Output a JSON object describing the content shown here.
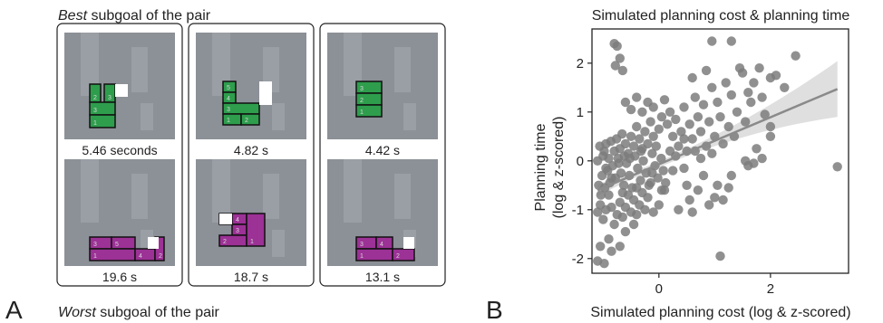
{
  "panel_a": {
    "letter": "A",
    "top_caption_emph": "Best",
    "top_caption_rest": " subgoal of the pair",
    "bottom_caption_emph": "Worst",
    "bottom_caption_rest": " subgoal of the pair",
    "pairs": [
      {
        "best": {
          "time_label": "5.46 seconds",
          "block_numbers": [
            "2",
            "3",
            "3",
            "1"
          ]
        },
        "worst": {
          "time_label": "19.6 s",
          "block_numbers": [
            "3",
            "5",
            "1",
            "4",
            "2"
          ]
        }
      },
      {
        "best": {
          "time_label": "4.82 s",
          "block_numbers": [
            "5",
            "4",
            "3",
            "1",
            "2"
          ]
        },
        "worst": {
          "time_label": "18.7 s",
          "block_numbers": [
            "5",
            "4",
            "3",
            "2",
            "1"
          ]
        }
      },
      {
        "best": {
          "time_label": "4.42 s",
          "block_numbers": [
            "3",
            "2",
            "1"
          ]
        },
        "worst": {
          "time_label": "13.1 s",
          "block_numbers": [
            "3",
            "4",
            "1",
            "2"
          ]
        }
      }
    ],
    "colors": {
      "best_fill": "#2e9e4d",
      "worst_fill": "#9c3196",
      "block_border": "#111111",
      "gap": "#ffffff"
    }
  },
  "panel_b": {
    "letter": "B",
    "title": "Simulated planning cost & planning time",
    "colors": {
      "points": "#7d7d7d",
      "fit_line": "#8a8a8a",
      "ci_band": "#dcdcdc"
    }
  },
  "chart_data": {
    "type": "scatter",
    "title": "Simulated planning cost & planning time",
    "xlabel": "Simulated planning cost (log & z-scored)",
    "ylabel_lines": [
      "Planning time",
      "(log & z-scored)"
    ],
    "xlim": [
      -1.2,
      3.4
    ],
    "ylim": [
      -2.3,
      2.7
    ],
    "xticks": [
      0,
      2
    ],
    "yticks": [
      -2,
      -1,
      0,
      1,
      2
    ],
    "fit": {
      "x": [
        -1.1,
        3.2
      ],
      "y": [
        -0.6,
        1.47
      ]
    },
    "points": [
      [
        -1.1,
        -2.05
      ],
      [
        -1.05,
        -1.75
      ],
      [
        -0.98,
        -2.1
      ],
      [
        -0.9,
        -1.6
      ],
      [
        -0.85,
        -1.85
      ],
      [
        -0.7,
        -1.75
      ],
      [
        -0.6,
        -1.45
      ],
      [
        -0.45,
        -1.3
      ],
      [
        -1.1,
        -1.05
      ],
      [
        -1.05,
        -0.9
      ],
      [
        -1.0,
        -1.2
      ],
      [
        -0.95,
        -1.0
      ],
      [
        -0.9,
        -0.7
      ],
      [
        -0.85,
        -0.95
      ],
      [
        -0.8,
        -1.3
      ],
      [
        -0.75,
        -1.1
      ],
      [
        -0.7,
        -0.85
      ],
      [
        -0.65,
        -1.15
      ],
      [
        -0.6,
        -0.95
      ],
      [
        -0.55,
        -0.7
      ],
      [
        -0.5,
        -1.05
      ],
      [
        -0.45,
        -0.8
      ],
      [
        -0.4,
        -1.1
      ],
      [
        -0.35,
        -0.9
      ],
      [
        -0.3,
        -0.65
      ],
      [
        -0.25,
        -1.0
      ],
      [
        -0.2,
        -0.75
      ],
      [
        -0.1,
        -1.05
      ],
      [
        0.0,
        -0.9
      ],
      [
        0.05,
        -0.6
      ],
      [
        -1.08,
        -0.5
      ],
      [
        -1.02,
        -0.3
      ],
      [
        -0.97,
        -0.55
      ],
      [
        -0.92,
        -0.2
      ],
      [
        -0.88,
        -0.45
      ],
      [
        -0.83,
        -0.1
      ],
      [
        -0.78,
        -0.35
      ],
      [
        -0.73,
        0.05
      ],
      [
        -0.68,
        -0.25
      ],
      [
        -0.63,
        -0.5
      ],
      [
        -0.58,
        -0.05
      ],
      [
        -0.53,
        -0.3
      ],
      [
        -0.48,
        -0.55
      ],
      [
        -0.43,
        0.1
      ],
      [
        -0.38,
        -0.15
      ],
      [
        -0.33,
        -0.4
      ],
      [
        -0.28,
        0.0
      ],
      [
        -0.23,
        -0.25
      ],
      [
        -0.18,
        -0.5
      ],
      [
        -0.12,
        0.15
      ],
      [
        -0.07,
        -0.1
      ],
      [
        -0.02,
        -0.35
      ],
      [
        0.04,
        0.05
      ],
      [
        0.08,
        -0.2
      ],
      [
        0.12,
        -0.45
      ],
      [
        -1.06,
        0.3
      ],
      [
        -1.0,
        0.1
      ],
      [
        -0.95,
        0.35
      ],
      [
        -0.9,
        0.05
      ],
      [
        -0.86,
        0.4
      ],
      [
        -0.8,
        0.2
      ],
      [
        -0.76,
        0.45
      ],
      [
        -0.7,
        0.25
      ],
      [
        -0.66,
        0.55
      ],
      [
        -0.6,
        0.35
      ],
      [
        -0.55,
        0.15
      ],
      [
        -0.5,
        0.5
      ],
      [
        -0.45,
        0.3
      ],
      [
        -0.4,
        0.7
      ],
      [
        -0.35,
        0.45
      ],
      [
        -0.3,
        0.25
      ],
      [
        -0.25,
        0.6
      ],
      [
        -0.2,
        0.35
      ],
      [
        -0.15,
        0.8
      ],
      [
        -0.1,
        0.5
      ],
      [
        -0.05,
        0.3
      ],
      [
        0.0,
        0.65
      ],
      [
        0.05,
        0.9
      ],
      [
        -0.6,
        1.2
      ],
      [
        -0.5,
        1.05
      ],
      [
        -0.4,
        1.3
      ],
      [
        -0.3,
        1.0
      ],
      [
        -0.2,
        1.2
      ],
      [
        -0.1,
        1.1
      ],
      [
        0.1,
        1.25
      ],
      [
        0.2,
        1.0
      ],
      [
        0.15,
        0.75
      ],
      [
        0.25,
        0.5
      ],
      [
        0.3,
        0.85
      ],
      [
        0.35,
        0.3
      ],
      [
        0.4,
        0.6
      ],
      [
        0.45,
        1.1
      ],
      [
        0.5,
        0.2
      ],
      [
        0.55,
        0.75
      ],
      [
        0.6,
        0.45
      ],
      [
        0.65,
        1.3
      ],
      [
        0.7,
        0.9
      ],
      [
        0.75,
        0.6
      ],
      [
        0.8,
        1.15
      ],
      [
        0.85,
        0.3
      ],
      [
        0.9,
        0.8
      ],
      [
        0.95,
        1.5
      ],
      [
        1.0,
        0.5
      ],
      [
        1.05,
        1.2
      ],
      [
        1.1,
        0.9
      ],
      [
        1.15,
        0.35
      ],
      [
        1.2,
        1.6
      ],
      [
        1.25,
        0.7
      ],
      [
        1.3,
        1.35
      ],
      [
        1.35,
        0.5
      ],
      [
        1.4,
        1.0
      ],
      [
        1.5,
        1.8
      ],
      [
        1.55,
        0.8
      ],
      [
        1.6,
        1.4
      ],
      [
        1.65,
        1.2
      ],
      [
        1.7,
        1.6
      ],
      [
        1.8,
        1.9
      ],
      [
        1.85,
        1.3
      ],
      [
        1.9,
        0.95
      ],
      [
        2.0,
        1.7
      ],
      [
        2.0,
        0.7
      ],
      [
        2.1,
        1.75
      ],
      [
        2.25,
        1.5
      ],
      [
        2.45,
        2.15
      ],
      [
        0.6,
        1.7
      ],
      [
        0.85,
        1.85
      ],
      [
        1.3,
        2.45
      ],
      [
        0.95,
        2.45
      ],
      [
        1.45,
        1.9
      ],
      [
        -0.8,
        2.4
      ],
      [
        -0.75,
        2.35
      ],
      [
        -0.7,
        2.1
      ],
      [
        -0.65,
        1.85
      ],
      [
        -0.78,
        1.95
      ],
      [
        0.5,
        -0.5
      ],
      [
        0.55,
        -0.8
      ],
      [
        0.6,
        -1.05
      ],
      [
        0.7,
        -0.6
      ],
      [
        0.8,
        -0.3
      ],
      [
        0.9,
        -0.9
      ],
      [
        1.0,
        -0.75
      ],
      [
        1.05,
        -0.5
      ],
      [
        1.15,
        -0.8
      ],
      [
        1.25,
        -0.55
      ],
      [
        1.3,
        -0.3
      ],
      [
        0.35,
        -1.0
      ],
      [
        0.45,
        -0.15
      ],
      [
        1.1,
        -1.95
      ],
      [
        1.55,
        0.0
      ],
      [
        1.6,
        -0.1
      ],
      [
        1.7,
        -0.05
      ],
      [
        1.75,
        0.25
      ],
      [
        1.85,
        0.05
      ],
      [
        2.0,
        0.5
      ],
      [
        0.75,
        0.05
      ],
      [
        0.95,
        0.15
      ],
      [
        0.25,
        -0.2
      ],
      [
        0.2,
        0.2
      ],
      [
        3.2,
        -0.12
      ],
      [
        -1.1,
        0.0
      ],
      [
        -0.95,
        -0.15
      ],
      [
        -0.62,
        0.1
      ],
      [
        -0.32,
        0.2
      ],
      [
        -0.12,
        -0.25
      ],
      [
        0.3,
        0.1
      ],
      [
        0.65,
        0.2
      ],
      [
        0.45,
        0.45
      ],
      [
        0.1,
        -0.6
      ],
      [
        -0.15,
        -0.45
      ],
      [
        -0.4,
        -0.55
      ],
      [
        -0.65,
        -0.65
      ],
      [
        -0.85,
        -0.35
      ],
      [
        -1.04,
        -0.7
      ],
      [
        -0.98,
        0.2
      ],
      [
        -0.72,
        -0.05
      ],
      [
        -0.52,
        0.05
      ]
    ]
  }
}
